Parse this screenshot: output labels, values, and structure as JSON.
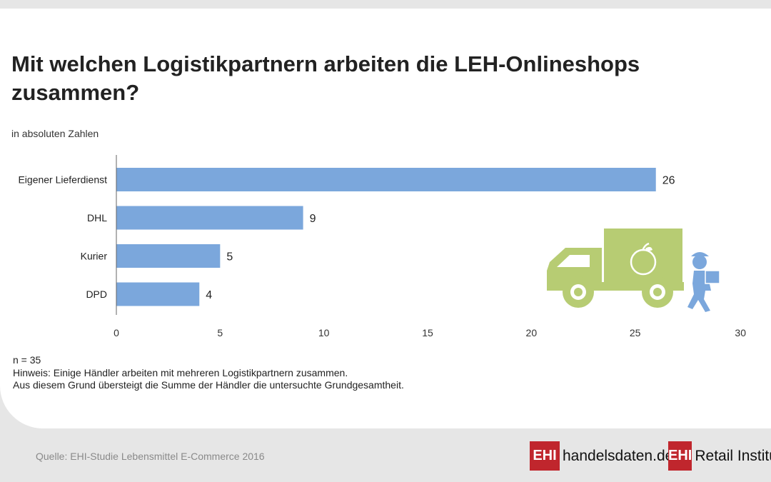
{
  "title": "Mit welchen Logistikpartnern arbeiten die LEH-Onlineshops zusammen?",
  "subtitle": "in absoluten Zahlen",
  "chart_data": {
    "type": "bar",
    "orientation": "horizontal",
    "categories": [
      "Eigener Lieferdienst",
      "DHL",
      "Kurier",
      "DPD"
    ],
    "values": [
      26,
      9,
      5,
      4
    ],
    "xlim": [
      0,
      30
    ],
    "xticks": [
      0,
      5,
      10,
      15,
      20,
      25,
      30
    ],
    "bar_color": "#7ba7dc",
    "grid": false,
    "data_labels": true
  },
  "illustration": {
    "name": "delivery-truck-illustration",
    "truck_color": "#b7cc73",
    "courier_color": "#7ba7dc"
  },
  "notes": [
    "n = 35",
    "Hinweis: Einige Händler arbeiten mit mehreren Logistikpartnern zusammen.",
    "Aus diesem Grund übersteigt die Summe der Händler die untersuchte Grundgesamtheit."
  ],
  "footer": {
    "source": "Quelle: EHI-Studie Lebensmittel E-Commerce 2016",
    "brands": [
      {
        "box": "EHI",
        "text": "handelsdaten.de"
      },
      {
        "box": "EHI",
        "text": "Retail Institute"
      }
    ],
    "brand_color": "#c0262d"
  }
}
